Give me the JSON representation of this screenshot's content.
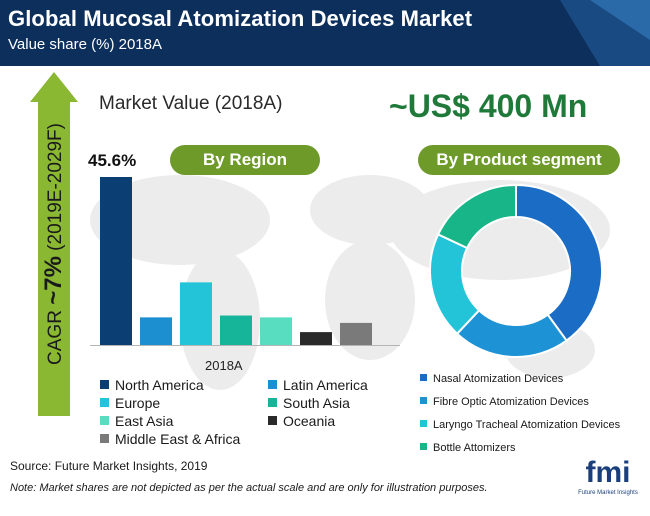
{
  "header": {
    "title": "Global Mucosal Atomization Devices Market",
    "subtitle": "Value share (%) 2018A"
  },
  "cagr": {
    "prefix": "CAGR ",
    "value": "~7%",
    "period": " (2019E-2029F)"
  },
  "market_value_title": "Market Value (2018A)",
  "headline_value": "~US$ 400 Mn",
  "pills": {
    "region": "By Region",
    "product": "By Product segment"
  },
  "source": "Source: Future Market Insights, 2019",
  "note": "Note:  Market shares are not depicted as per the actual scale and are only for illustration purposes.",
  "logo": {
    "text": "fmi",
    "sub": "Future Market Insights"
  },
  "colors": {
    "header_bg": "#0d2f5c",
    "pill_green": "#6e9a2a",
    "cagr_arrow": "#8ab833",
    "headline_green": "#1f7a3a"
  },
  "chart_data": [
    {
      "type": "bar",
      "title": "By Region",
      "xlabel": "2018A",
      "categories": [
        "North America",
        "Latin America",
        "Europe",
        "South Asia",
        "East Asia",
        "Oceania",
        "Middle East & Africa"
      ],
      "values": [
        45.6,
        7.5,
        17,
        8,
        7.5,
        3.5,
        6
      ],
      "data_labels": [
        "45.6%",
        "",
        "",
        "",
        "",
        "",
        ""
      ],
      "colors": [
        "#0b3f74",
        "#1c8fd0",
        "#23c3d8",
        "#16b59a",
        "#59ddc0",
        "#2a2a2a",
        "#7a7a7a"
      ],
      "ylim": [
        0,
        50
      ],
      "grid": false
    },
    {
      "type": "pie",
      "title": "By Product segment",
      "categories": [
        "Nasal Atomization Devices",
        "Fibre Optic Atomization Devices",
        "Laryngo Tracheal Atomization Devices",
        "Bottle Attomizers"
      ],
      "values": [
        40,
        22,
        20,
        18
      ],
      "colors": [
        "#1b6cc4",
        "#1d93d6",
        "#23c3d8",
        "#17b587"
      ]
    }
  ]
}
